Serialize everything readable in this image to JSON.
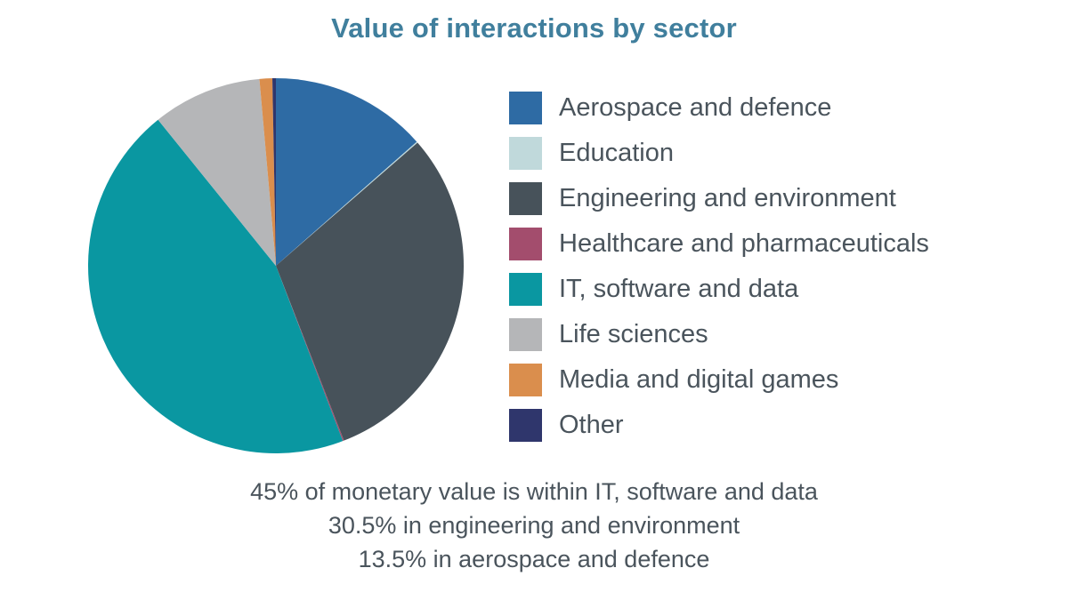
{
  "chart_data": {
    "type": "pie",
    "title": "Value of interactions by sector",
    "title_color": "#407f9d",
    "text_color": "#4a545c",
    "background_color": "#ffffff",
    "legend_position": "right",
    "start_angle_deg": 0,
    "direction": "clockwise",
    "unit": "%",
    "series": [
      {
        "label": "Aerospace and defence",
        "value": 13.5,
        "color": "#2e6ba4"
      },
      {
        "label": "Education",
        "value": 0.1,
        "color": "#c0d9db"
      },
      {
        "label": "Engineering and environment",
        "value": 30.5,
        "color": "#47525a"
      },
      {
        "label": "Healthcare and pharmaceuticals",
        "value": 0.1,
        "color": "#a34d6d"
      },
      {
        "label": "IT, software and data",
        "value": 45,
        "color": "#0a97a1"
      },
      {
        "label": "Life sciences",
        "value": 9.4,
        "color": "#b5b6b8"
      },
      {
        "label": "Media and digital games",
        "value": 1.1,
        "color": "#da8e4d"
      },
      {
        "label": "Other",
        "value": 0.3,
        "color": "#2f366c"
      }
    ],
    "annotations": [
      "45% of monetary value is within IT, software and data",
      "30.5% in engineering and environment",
      "13.5% in aerospace and defence"
    ]
  }
}
